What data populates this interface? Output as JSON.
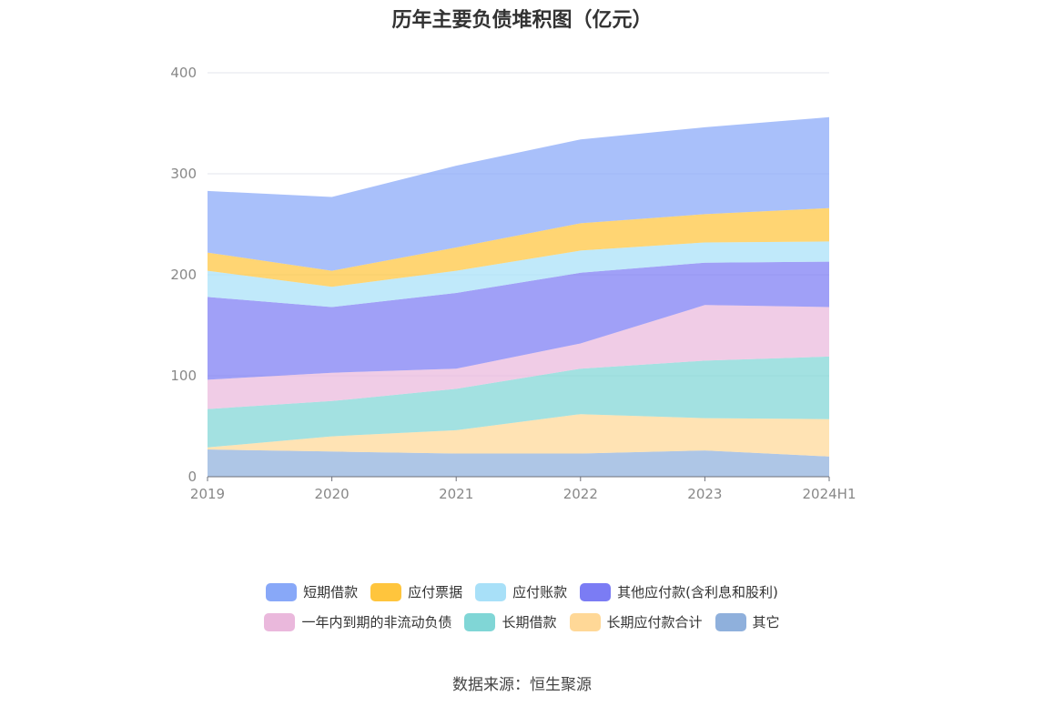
{
  "chart_data": {
    "type": "area",
    "title": "历年主要负债堆积图（亿元）",
    "categories": [
      "2019",
      "2020",
      "2021",
      "2022",
      "2023",
      "2024H1"
    ],
    "y_ticks": [
      "0",
      "100",
      "200",
      "300",
      "400"
    ],
    "ylim": [
      0,
      400
    ],
    "stacked": true,
    "grid": true,
    "legend_position": "bottom",
    "series": [
      {
        "name": "其它",
        "color": "#8fb0dc",
        "values": [
          27,
          25,
          23,
          23,
          26,
          20
        ]
      },
      {
        "name": "长期应付款合计",
        "color": "#ffd897",
        "values": [
          2,
          15,
          23,
          39,
          32,
          37
        ]
      },
      {
        "name": "长期借款",
        "color": "#80d6d6",
        "values": [
          38,
          35,
          41,
          45,
          57,
          62
        ]
      },
      {
        "name": "一年内到期的非流动负债",
        "color": "#eab8dc",
        "values": [
          29,
          28,
          20,
          25,
          55,
          49
        ]
      },
      {
        "name": "其他应付款(含利息和股利)",
        "color": "#7b7cf4",
        "values": [
          82,
          65,
          75,
          70,
          42,
          45
        ]
      },
      {
        "name": "应付账款",
        "color": "#a8e0f8",
        "values": [
          26,
          20,
          22,
          22,
          20,
          20
        ]
      },
      {
        "name": "应付票据",
        "color": "#ffc53d",
        "values": [
          18,
          16,
          23,
          27,
          28,
          33
        ]
      },
      {
        "name": "短期借款",
        "color": "#88a8f8",
        "values": [
          61,
          73,
          81,
          83,
          86,
          90
        ]
      }
    ]
  },
  "legend_rows": [
    [
      {
        "name": "短期借款",
        "color": "#88a8f8"
      },
      {
        "name": "应付票据",
        "color": "#ffc53d"
      },
      {
        "name": "应付账款",
        "color": "#a8e0f8"
      },
      {
        "name": "其他应付款(含利息和股利)",
        "color": "#7b7cf4"
      }
    ],
    [
      {
        "name": "一年内到期的非流动负债",
        "color": "#eab8dc"
      },
      {
        "name": "长期借款",
        "color": "#80d6d6"
      },
      {
        "name": "长期应付款合计",
        "color": "#ffd897"
      },
      {
        "name": "其它",
        "color": "#8fb0dc"
      }
    ]
  ],
  "source": "数据来源：恒生聚源"
}
